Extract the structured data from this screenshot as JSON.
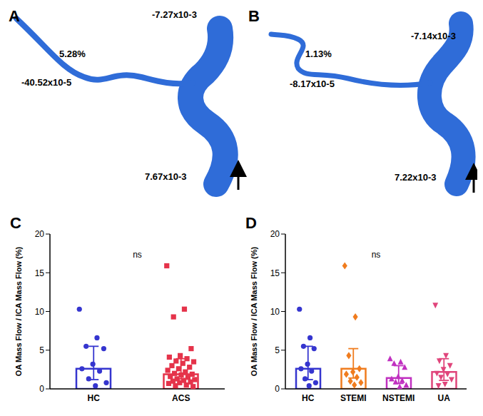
{
  "images": [
    {
      "panel": "A",
      "annotations": [
        "-7.27x10-3",
        "5.28%",
        "-40.52x10-5",
        "7.67x10-3"
      ]
    },
    {
      "panel": "B",
      "annotations": [
        "-7.14x10-3",
        "1.13%",
        "-8.17x10-5",
        "7.22x10-3"
      ]
    }
  ],
  "chart_data": [
    {
      "panel": "C",
      "type": "bar",
      "y_label": "OA Mass Flow / ICA Mass Flow  (%)",
      "annotation": "ns",
      "ylim": [
        0,
        20
      ],
      "yticks": [
        0,
        5,
        10,
        15,
        20
      ],
      "grid": false,
      "series": [
        {
          "name": "HC",
          "color": "#3535cf",
          "marker": "circle",
          "mean": 2.6,
          "error": [
            1.2,
            5.5
          ],
          "values": [
            10.3,
            6.6,
            5.5,
            5.2,
            3.2,
            2.6,
            2.3,
            1.3,
            0.8,
            0.4
          ]
        },
        {
          "name": "ACS",
          "color": "#e5334a",
          "marker": "square",
          "mean": 1.9,
          "error": [
            1.3,
            3.9
          ],
          "values": [
            15.9,
            10.3,
            9.3,
            5.2,
            4.3,
            4.1,
            3.9,
            3.6,
            3.5,
            3.3,
            3.0,
            2.8,
            2.6,
            2.4,
            2.2,
            2.0,
            1.9,
            1.8,
            1.6,
            1.5,
            1.3,
            1.2,
            1.1,
            1.0,
            0.9,
            0.8,
            0.7,
            0.5,
            0.4,
            0.3
          ]
        }
      ]
    },
    {
      "panel": "D",
      "type": "bar",
      "y_label": "OA Mass Flow / ICA Mass Flow  (%)",
      "annotation": "ns",
      "ylim": [
        0,
        20
      ],
      "yticks": [
        0,
        5,
        10,
        15,
        20
      ],
      "grid": false,
      "series": [
        {
          "name": "HC",
          "color": "#3535cf",
          "marker": "circle",
          "mean": 2.6,
          "error": [
            1.2,
            5.5
          ],
          "values": [
            10.3,
            6.6,
            5.5,
            5.2,
            3.2,
            2.6,
            2.3,
            1.3,
            0.8,
            0.4
          ]
        },
        {
          "name": "STEMI",
          "color": "#f07c1e",
          "marker": "diamond",
          "mean": 2.6,
          "error": [
            1.4,
            5.2
          ],
          "values": [
            15.9,
            9.3,
            4.3,
            2.6,
            2.2,
            1.9,
            1.5,
            1.0,
            0.8,
            0.5
          ]
        },
        {
          "name": "NSTEMI",
          "color": "#c030c0",
          "marker": "triangle",
          "mean": 1.4,
          "error": [
            0.7,
            3.0
          ],
          "values": [
            3.9,
            3.5,
            3.3,
            2.8,
            1.6,
            1.3,
            1.1,
            0.9,
            0.5,
            0.3
          ]
        },
        {
          "name": "UA",
          "color": "#e0457b",
          "marker": "triangle-down",
          "mean": 2.2,
          "error": [
            1.1,
            3.9
          ],
          "values": [
            10.8,
            4.3,
            3.6,
            3.0,
            2.5,
            2.0,
            1.9,
            1.5,
            1.2,
            0.6,
            0.4
          ]
        }
      ]
    }
  ]
}
